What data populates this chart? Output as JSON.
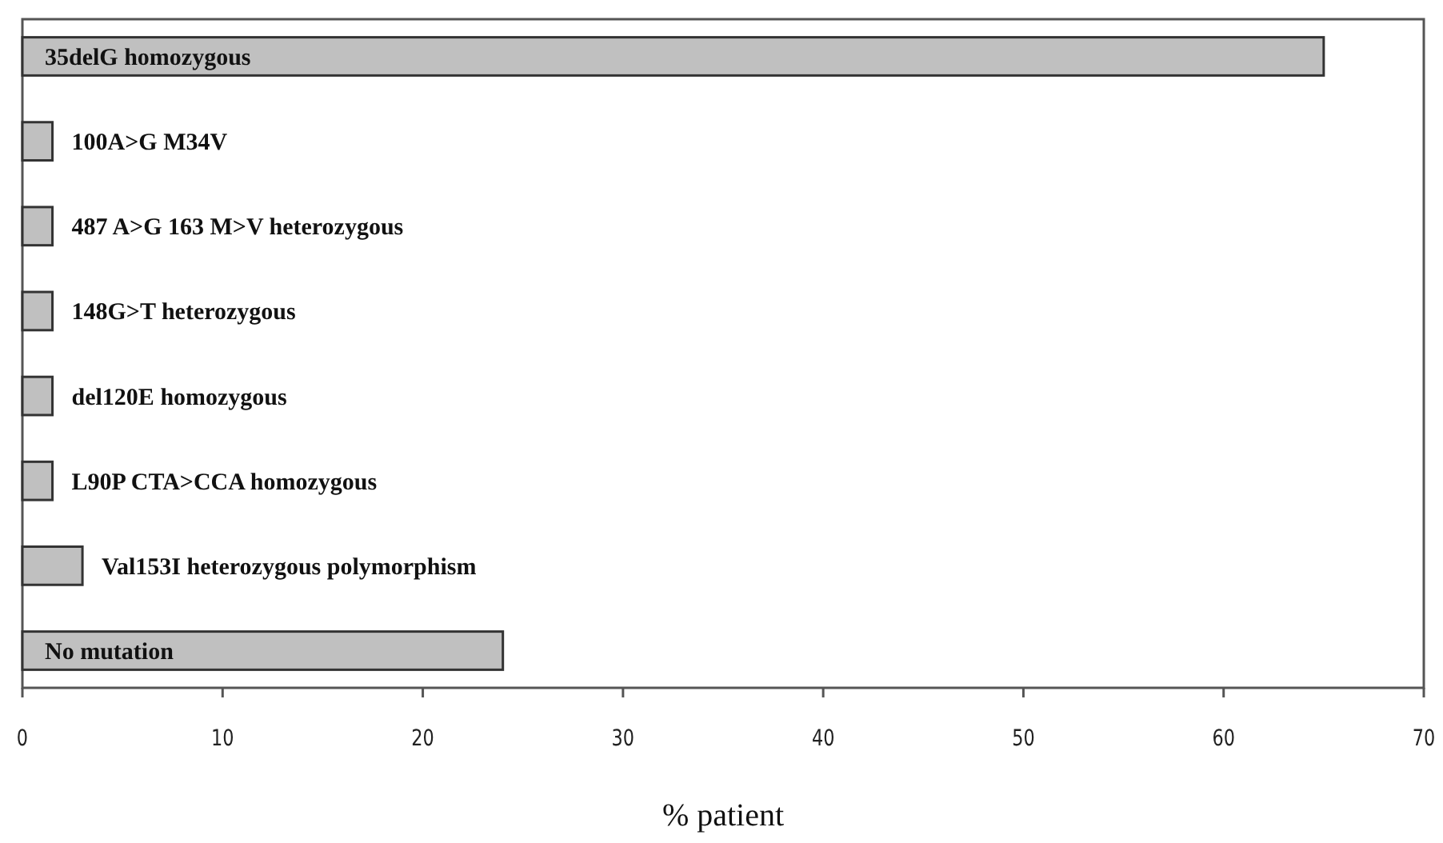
{
  "chart_data": {
    "type": "bar",
    "orientation": "horizontal",
    "xlabel": "% patient",
    "categories": [
      "35delG homozygous",
      "100A>G  M34V",
      "487 A>G 163 M>V heterozygous",
      "148G>T heterozygous",
      "del120E homozygous",
      "L90P CTA>CCA homozygous",
      "Val153I heterozygous polymorphism",
      "No mutation"
    ],
    "values": [
      65,
      1.5,
      1.5,
      1.5,
      1.5,
      1.5,
      3,
      24
    ],
    "color": "#c0c0c0",
    "xlim": [
      0,
      70
    ],
    "xticks": [
      0,
      10,
      20,
      30,
      40,
      50,
      60,
      70
    ]
  }
}
